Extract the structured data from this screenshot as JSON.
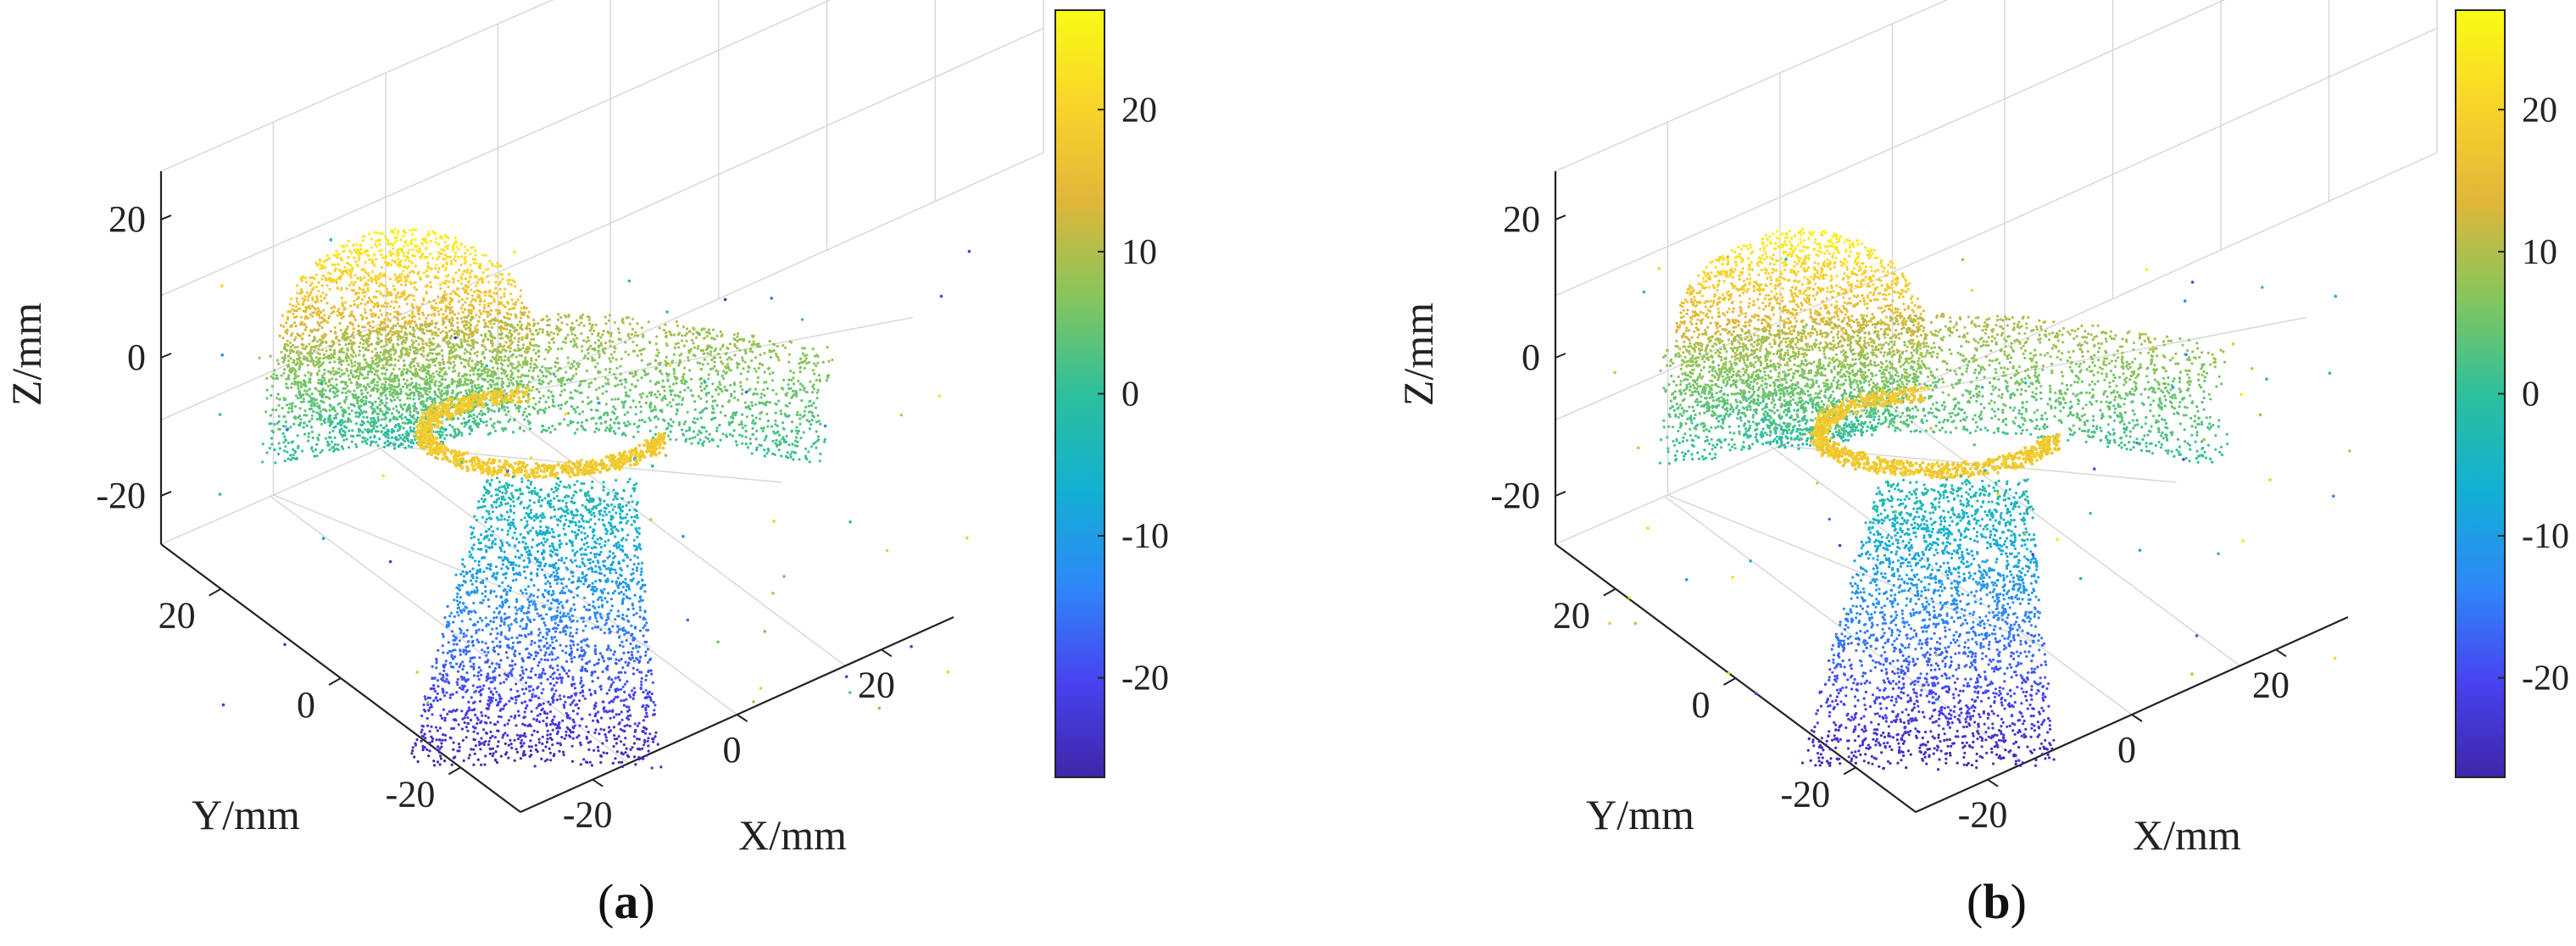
{
  "chart_data": [
    {
      "type": "scatter3d",
      "panel_label": "a",
      "xlabel": "X/mm",
      "ylabel": "Y/mm",
      "zlabel": "Z/mm",
      "xticks": [
        "-20",
        "0",
        "20"
      ],
      "yticks": [
        "20",
        "0",
        "-20"
      ],
      "zticks": [
        "20",
        "0",
        "-20"
      ],
      "xlim": [
        -30,
        30
      ],
      "ylim": [
        -30,
        30
      ],
      "zlim": [
        -27,
        27
      ],
      "colorbar": {
        "ticks": [
          "20",
          "10",
          "0",
          "-10",
          "-20"
        ],
        "range": [
          -27,
          27
        ],
        "colormap": "parula"
      },
      "grid": true
    },
    {
      "type": "scatter3d",
      "panel_label": "b",
      "xlabel": "X/mm",
      "ylabel": "Y/mm",
      "zlabel": "Z/mm",
      "xticks": [
        "-20",
        "0",
        "20"
      ],
      "yticks": [
        "20",
        "0",
        "-20"
      ],
      "zticks": [
        "20",
        "0",
        "-20"
      ],
      "xlim": [
        -30,
        30
      ],
      "ylim": [
        -30,
        30
      ],
      "zlim": [
        -27,
        27
      ],
      "colorbar": {
        "ticks": [
          "20",
          "10",
          "0",
          "-10",
          "-20"
        ],
        "range": [
          -27,
          27
        ],
        "colormap": "parula"
      },
      "grid": true
    }
  ],
  "captions": [
    {
      "open": "(",
      "label": "a",
      "close": ")"
    },
    {
      "open": "(",
      "label": "b",
      "close": ")"
    }
  ],
  "colors": {
    "parula": [
      "#3e26a8",
      "#4743f0",
      "#2e88f8",
      "#12b0d2",
      "#2dc09c",
      "#85c65b",
      "#e0b63a",
      "#f9d42a",
      "#f9fb15"
    ],
    "axis": "#222222",
    "grid": "#d8d8d8"
  }
}
